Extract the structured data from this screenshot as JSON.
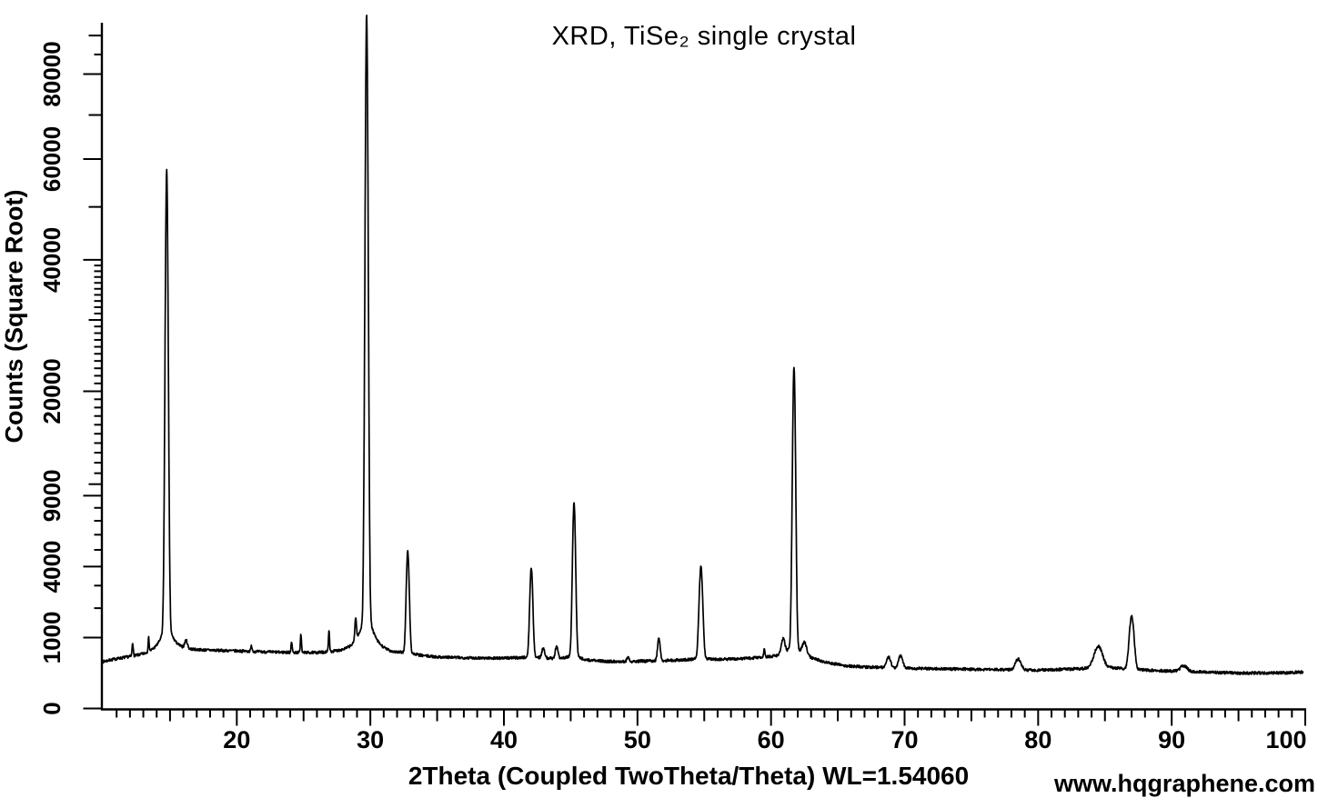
{
  "chart": {
    "title": "XRD, TiSe₂ single crystal",
    "xlabel": "2Theta (Coupled TwoTheta/Theta) WL=1.54060",
    "ylabel": "Counts (Square Root)",
    "watermark": "www.hqgraphene.com"
  },
  "chart_data": {
    "type": "line",
    "title": "XRD, TiSe₂ single crystal",
    "xlabel": "2Theta (Coupled TwoTheta/Theta) WL=1.54060",
    "ylabel": "Counts (Square Root)",
    "x_range": [
      10,
      100
    ],
    "y_scale": "sqrt",
    "y_display_max": 93350,
    "x_labels": [
      20,
      30,
      40,
      50,
      60,
      70,
      80,
      90,
      100
    ],
    "x_minor_step": 1,
    "x_medium_step": 5,
    "x_major_step": 10,
    "y_ticks_labeled": [
      0,
      1000,
      4000,
      9000,
      20000,
      40000,
      60000,
      80000
    ],
    "y_ticks_medium": [
      10000,
      30000,
      50000,
      70000,
      90000
    ],
    "y_minor_step": 1000,
    "y_minor_max": 40000,
    "y_minor_extra": [
      85000
    ],
    "curve_color": "#000000",
    "axis_color": "#000000",
    "background": "#ffffff",
    "grid": false,
    "legend": "none",
    "peaks": [
      {
        "two_theta": 12.2,
        "amplitude": 330,
        "sigma": 0.04
      },
      {
        "two_theta": 13.4,
        "amplitude": 350,
        "sigma": 0.04
      },
      {
        "two_theta": 14.75,
        "amplitude": 56300,
        "sigma": 0.095
      },
      {
        "two_theta": 16.2,
        "amplitude": 200,
        "sigma": 0.1
      },
      {
        "two_theta": 21.1,
        "amplitude": 130,
        "sigma": 0.05
      },
      {
        "two_theta": 24.1,
        "amplitude": 280,
        "sigma": 0.04
      },
      {
        "two_theta": 24.8,
        "amplitude": 480,
        "sigma": 0.04
      },
      {
        "two_theta": 26.9,
        "amplitude": 560,
        "sigma": 0.04
      },
      {
        "two_theta": 28.9,
        "amplitude": 700,
        "sigma": 0.06
      },
      {
        "two_theta": 29.72,
        "amplitude": 94200,
        "sigma": 0.095
      },
      {
        "two_theta": 32.8,
        "amplitude": 4250,
        "sigma": 0.1
      },
      {
        "two_theta": 42.05,
        "amplitude": 3400,
        "sigma": 0.1
      },
      {
        "two_theta": 42.95,
        "amplitude": 230,
        "sigma": 0.1
      },
      {
        "two_theta": 43.95,
        "amplitude": 260,
        "sigma": 0.1
      },
      {
        "two_theta": 45.25,
        "amplitude": 7850,
        "sigma": 0.1
      },
      {
        "two_theta": 49.3,
        "amplitude": 90,
        "sigma": 0.08
      },
      {
        "two_theta": 51.6,
        "amplitude": 520,
        "sigma": 0.09
      },
      {
        "two_theta": 54.75,
        "amplitude": 3500,
        "sigma": 0.12
      },
      {
        "two_theta": 59.5,
        "amplitude": 170,
        "sigma": 0.05
      },
      {
        "two_theta": 60.9,
        "amplitude": 380,
        "sigma": 0.13
      },
      {
        "two_theta": 61.72,
        "amplitude": 22500,
        "sigma": 0.1
      },
      {
        "two_theta": 62.5,
        "amplitude": 300,
        "sigma": 0.15
      },
      {
        "two_theta": 68.8,
        "amplitude": 190,
        "sigma": 0.15
      },
      {
        "two_theta": 69.7,
        "amplitude": 230,
        "sigma": 0.15
      },
      {
        "two_theta": 78.5,
        "amplitude": 190,
        "sigma": 0.2
      },
      {
        "two_theta": 84.5,
        "amplitude": 440,
        "sigma": 0.3
      },
      {
        "two_theta": 87.0,
        "amplitude": 1380,
        "sigma": 0.16
      },
      {
        "two_theta": 90.9,
        "amplitude": 90,
        "sigma": 0.25
      }
    ],
    "peak_base_flare": {
      "min_amplitude": 2000,
      "fraction": 0.012,
      "hwhm_deg": 0.5
    },
    "baseline": [
      [
        10,
        430
      ],
      [
        11,
        480
      ],
      [
        12,
        515
      ],
      [
        13,
        545
      ],
      [
        14,
        590
      ],
      [
        15,
        645
      ],
      [
        16.5,
        655
      ],
      [
        18,
        660
      ],
      [
        20,
        650
      ],
      [
        22,
        630
      ],
      [
        24,
        615
      ],
      [
        26,
        600
      ],
      [
        27.5,
        610
      ],
      [
        29,
        620
      ],
      [
        30.5,
        605
      ],
      [
        31.5,
        575
      ],
      [
        33,
        545
      ],
      [
        35,
        515
      ],
      [
        37,
        505
      ],
      [
        39,
        500
      ],
      [
        41,
        500
      ],
      [
        43,
        490
      ],
      [
        44.5,
        480
      ],
      [
        46,
        450
      ],
      [
        48,
        435
      ],
      [
        50,
        440
      ],
      [
        52,
        455
      ],
      [
        54,
        465
      ],
      [
        56,
        470
      ],
      [
        58,
        490
      ],
      [
        59.8,
        515
      ],
      [
        61.2,
        525
      ],
      [
        62.8,
        495
      ],
      [
        64,
        420
      ],
      [
        65.5,
        360
      ],
      [
        67,
        340
      ],
      [
        69,
        330
      ],
      [
        71,
        318
      ],
      [
        74,
        308
      ],
      [
        77,
        300
      ],
      [
        80,
        293
      ],
      [
        82,
        305
      ],
      [
        83.8,
        322
      ],
      [
        85.5,
        330
      ],
      [
        87.6,
        300
      ],
      [
        89,
        285
      ],
      [
        91,
        270
      ],
      [
        93,
        260
      ],
      [
        95,
        250
      ],
      [
        97,
        250
      ],
      [
        99,
        256
      ],
      [
        99.9,
        268
      ]
    ],
    "noise": {
      "seed": 7,
      "sqrt_amplitude": 1.2
    },
    "sample_step_deg": 0.024
  }
}
